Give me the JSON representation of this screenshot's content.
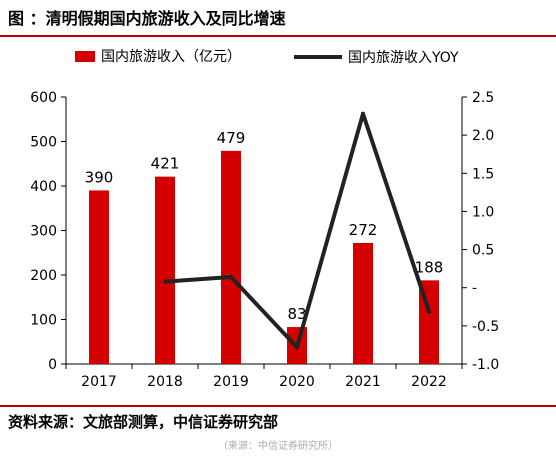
{
  "header": {
    "title": "图 ：清明假期国内旅游收入及同比增速"
  },
  "footer": {
    "source": "资料来源：文旅部测算，中信证券研究部",
    "watermark": "（来源：中信证券研究所）"
  },
  "chart_data": {
    "type": "bar",
    "categories": [
      "2017",
      "2018",
      "2019",
      "2020",
      "2021",
      "2022"
    ],
    "series": [
      {
        "name": "国内旅游收入（亿元）",
        "type": "bar",
        "axis": "left",
        "values": [
          390,
          421,
          479,
          83,
          272,
          188
        ],
        "data_labels": [
          "390",
          "421",
          "479",
          "83",
          "272",
          "188"
        ]
      },
      {
        "name": "国内旅游收入YOY",
        "type": "line",
        "axis": "right",
        "values": [
          null,
          0.08,
          0.14,
          -0.78,
          2.28,
          -0.31
        ]
      }
    ],
    "left_axis": {
      "ylim": [
        0,
        600
      ],
      "ticks": [
        0,
        100,
        200,
        300,
        400,
        500,
        600
      ],
      "tick_labels": [
        "0",
        "100",
        "200",
        "300",
        "400",
        "500",
        "600"
      ]
    },
    "right_axis": {
      "ylim": [
        -1.0,
        2.5
      ],
      "ticks": [
        -1.0,
        -0.5,
        0,
        0.5,
        1.0,
        1.5,
        2.0,
        2.5
      ],
      "tick_labels": [
        "-1.0",
        "-0.5",
        "-",
        "0.5",
        "1.0",
        "1.5",
        "2.0",
        "2.5"
      ]
    },
    "legend_position": "top",
    "grid": false,
    "colors": {
      "bar": "#d40000",
      "line": "#222222",
      "rule": "#c00000"
    }
  }
}
